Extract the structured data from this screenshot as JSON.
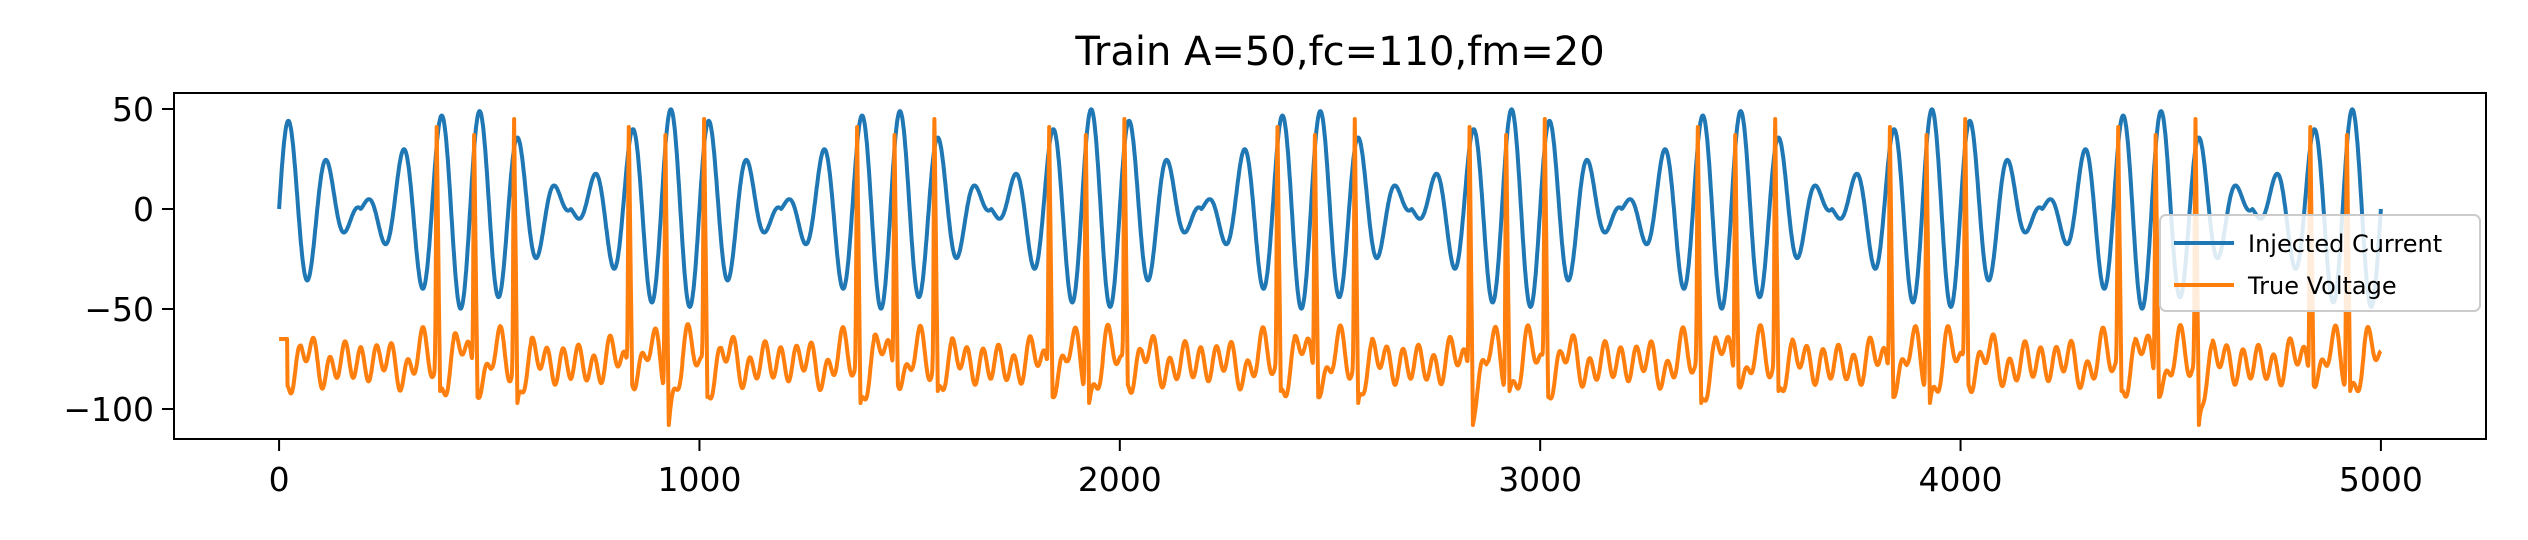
{
  "chart_data": {
    "type": "line",
    "title": "Train A=50,fc=110,fm=20",
    "xlabel": "",
    "ylabel": "",
    "xlim": [
      -250,
      5250
    ],
    "ylim": [
      -115,
      58
    ],
    "xticks": [
      0,
      1000,
      2000,
      3000,
      4000,
      5000
    ],
    "xtick_labels": [
      "0",
      "1000",
      "2000",
      "3000",
      "4000",
      "5000"
    ],
    "yticks": [
      50,
      0,
      -50,
      -100
    ],
    "ytick_labels": [
      "50",
      "0",
      "−50",
      "−100"
    ],
    "grid": false,
    "legend_position": "right",
    "series": [
      {
        "name": "Injected Current",
        "color": "#1f77b4",
        "model": "amplitude_modulated_sine",
        "amplitude": 50,
        "carrier_frequency": 110,
        "modulation_frequency": 20,
        "x_start": 0,
        "x_end": 5000
      },
      {
        "name": "True Voltage",
        "color": "#ff7f0e",
        "model": "spiking_response",
        "baseline": -65,
        "spike_peak": 45,
        "trough_min": -108,
        "x_start": 0,
        "x_end": 5000
      }
    ]
  }
}
